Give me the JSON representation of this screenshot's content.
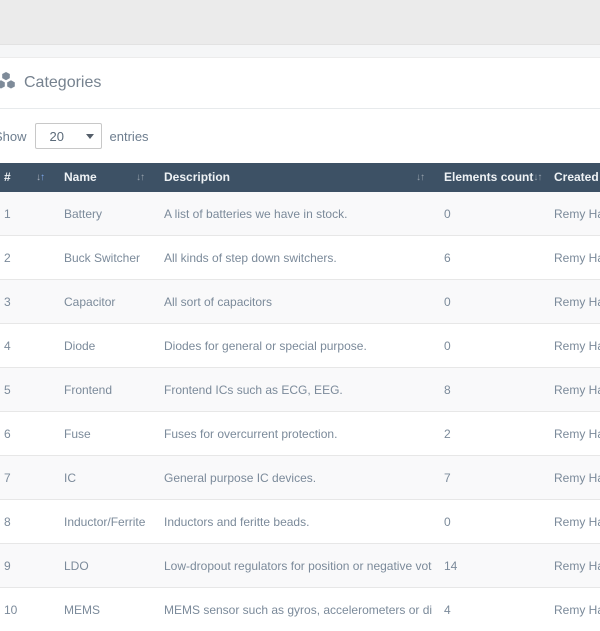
{
  "panel": {
    "title": "Categories",
    "icon": "cubes-icon"
  },
  "length_control": {
    "prefix": "Show",
    "selected": "20",
    "suffix": "entries"
  },
  "icons": {
    "sort_down": "↓",
    "sort_up": "↑"
  },
  "colors": {
    "table_header_bg": "#3d5165",
    "active_sort_arrow": "#7ca6e8",
    "body_text": "#7b8a9a",
    "topbar_bg": "#ebebeb"
  },
  "table": {
    "columns": [
      {
        "label": "#",
        "sort": "asc"
      },
      {
        "label": "Name",
        "sort": "none"
      },
      {
        "label": "Description",
        "sort": "none"
      },
      {
        "label": "Elements count",
        "sort": "none"
      },
      {
        "label": "Created",
        "sort": "none"
      }
    ],
    "rows": [
      {
        "num": "1",
        "name": "Battery",
        "description": "A list of batteries we have in stock.",
        "elements_count": "0",
        "created": "Remy Ha"
      },
      {
        "num": "2",
        "name": "Buck Switcher",
        "description": "All kinds of step down switchers.",
        "elements_count": "6",
        "created": "Remy Ha"
      },
      {
        "num": "3",
        "name": "Capacitor",
        "description": "All sort of capacitors",
        "elements_count": "0",
        "created": "Remy Ha"
      },
      {
        "num": "4",
        "name": "Diode",
        "description": "Diodes for general or special purpose.",
        "elements_count": "0",
        "created": "Remy Ha"
      },
      {
        "num": "5",
        "name": "Frontend",
        "description": "Frontend ICs such as ECG, EEG.",
        "elements_count": "8",
        "created": "Remy Ha"
      },
      {
        "num": "6",
        "name": "Fuse",
        "description": "Fuses for overcurrent protection.",
        "elements_count": "2",
        "created": "Remy Ha"
      },
      {
        "num": "7",
        "name": "IC",
        "description": "General purpose IC devices.",
        "elements_count": "7",
        "created": "Remy Ha"
      },
      {
        "num": "8",
        "name": "Inductor/Ferrite",
        "description": "Inductors and feritte beads.",
        "elements_count": "0",
        "created": "Remy Ha"
      },
      {
        "num": "9",
        "name": "LDO",
        "description": "Low-dropout regulators for position or negative votlage",
        "elements_count": "14",
        "created": "Remy Ha"
      },
      {
        "num": "10",
        "name": "MEMS",
        "description": "MEMS sensor such as gyros, accelerometers or digital",
        "elements_count": "4",
        "created": "Remy Ha"
      }
    ]
  }
}
